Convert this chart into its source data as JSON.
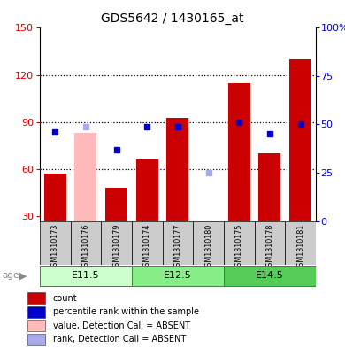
{
  "title": "GDS5642 / 1430165_at",
  "samples": [
    "GSM1310173",
    "GSM1310176",
    "GSM1310179",
    "GSM1310174",
    "GSM1310177",
    "GSM1310180",
    "GSM1310175",
    "GSM1310178",
    "GSM1310181"
  ],
  "groups": [
    {
      "label": "E11.5",
      "indices": [
        0,
        1,
        2
      ]
    },
    {
      "label": "E12.5",
      "indices": [
        3,
        4,
        5
      ]
    },
    {
      "label": "E14.5",
      "indices": [
        6,
        7,
        8
      ]
    }
  ],
  "bar_values": [
    57,
    null,
    48,
    66,
    93,
    null,
    115,
    70,
    130
  ],
  "bar_absent": [
    null,
    83,
    null,
    null,
    null,
    null,
    null,
    null,
    null
  ],
  "rank_values": [
    46,
    null,
    37,
    49,
    49,
    null,
    51,
    45,
    50
  ],
  "rank_absent": [
    null,
    49,
    null,
    null,
    null,
    25,
    null,
    null,
    null
  ],
  "ylim_left": [
    27,
    150
  ],
  "ylim_right": [
    0,
    100
  ],
  "yticks_left": [
    30,
    60,
    90,
    120,
    150
  ],
  "yticks_right": [
    0,
    25,
    50,
    75,
    100
  ],
  "bar_color": "#cc0000",
  "bar_absent_color": "#ffbbbb",
  "rank_color": "#0000cc",
  "rank_absent_color": "#aaaaee",
  "bg_color": "#ffffff",
  "label_area_color": "#cccccc",
  "group_colors": [
    "#ccffcc",
    "#88ee88",
    "#55cc55"
  ],
  "legend_labels": [
    "count",
    "percentile rank within the sample",
    "value, Detection Call = ABSENT",
    "rank, Detection Call = ABSENT"
  ],
  "legend_colors": [
    "#cc0000",
    "#0000cc",
    "#ffbbbb",
    "#aaaaee"
  ]
}
